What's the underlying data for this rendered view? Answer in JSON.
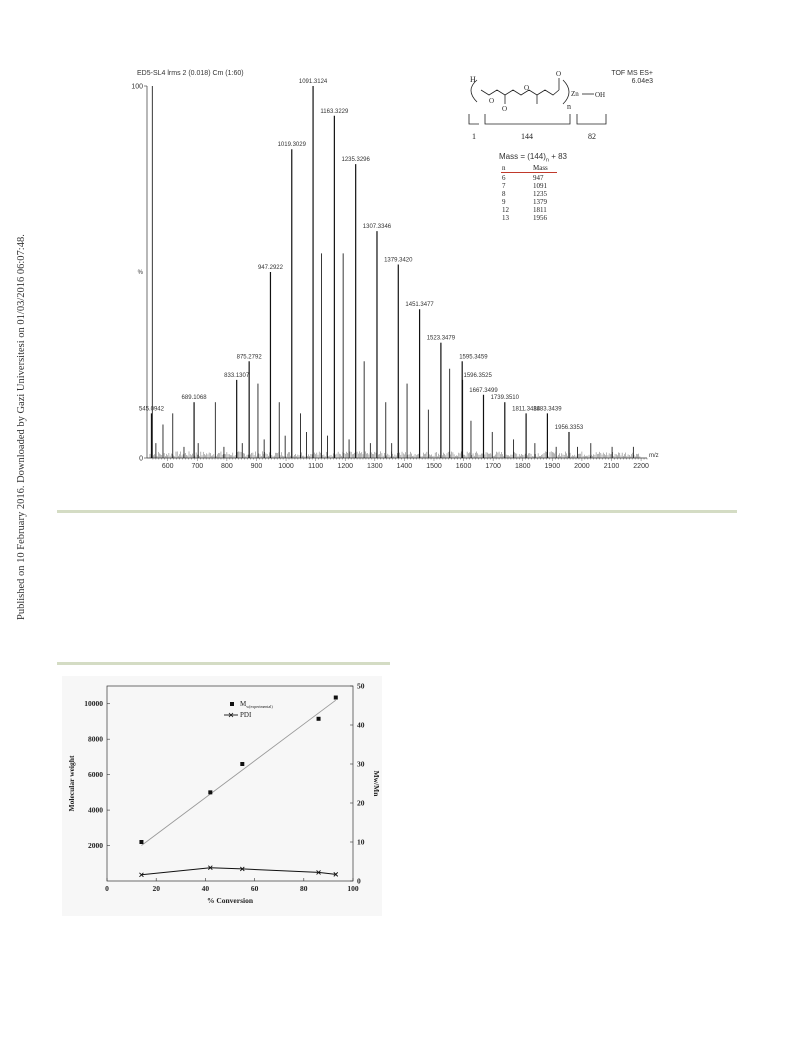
{
  "page": {
    "side_note": "Published on 10 February 2016. Downloaded by Gazi Universitesi on 01/03/2016 06:07:48."
  },
  "ms_figure": {
    "header_left": "ED5-SL4 lrms 2 (0.018) Cm (1:60)",
    "header_right_1": "TOF MS ES+",
    "header_right_2": "6.04e3",
    "structure": {
      "h_label": "H",
      "o_label_1": "O",
      "o_label_2": "O",
      "o_label_3": "O",
      "o_label_4": "O",
      "n_label": "n",
      "zn_label": "Zn",
      "oh_label": "OH",
      "bracket_1": "1",
      "bracket_2": "144",
      "bracket_3": "82",
      "mass_formula": "Mass = (144)",
      "mass_formula_sub": "n",
      "mass_formula_tail": " + 83"
    },
    "mass_table": {
      "headers": [
        "n",
        "Mass"
      ],
      "rows": [
        [
          "6",
          "947"
        ],
        [
          "7",
          "1091"
        ],
        [
          "8",
          "1235"
        ],
        [
          "9",
          "1379"
        ],
        [
          "12",
          "1811"
        ],
        [
          "13",
          "1956"
        ]
      ]
    }
  },
  "chart_data": [
    {
      "type": "bar",
      "title": "ED5-SL4 lrms 2 (0.018) Cm (1:60)",
      "xlabel": "m/z",
      "ylabel": "%",
      "xlim": [
        530,
        2220
      ],
      "ylim": [
        0,
        100
      ],
      "x_ticks": [
        600,
        700,
        800,
        900,
        1000,
        1100,
        1200,
        1300,
        1400,
        1500,
        1600,
        1700,
        1800,
        1900,
        2000,
        2100,
        2200
      ],
      "y_ticks": [
        0,
        100
      ],
      "y_tick_labels": [
        "0",
        "100"
      ],
      "y_mid_label": "%",
      "labeled_peaks": [
        {
          "x": 545.0942,
          "y": 12,
          "label": "545.0942"
        },
        {
          "x": 689.1068,
          "y": 15,
          "label": "689.1068"
        },
        {
          "x": 833.1307,
          "y": 21,
          "label": "833.1307"
        },
        {
          "x": 875.2792,
          "y": 26,
          "label": "875.2792"
        },
        {
          "x": 947.2922,
          "y": 50,
          "label": "947.2922"
        },
        {
          "x": 1019.3029,
          "y": 83,
          "label": "1019.3029"
        },
        {
          "x": 1091.3124,
          "y": 100,
          "label": "1091.3124"
        },
        {
          "x": 1163.3229,
          "y": 92,
          "label": "1163.3229"
        },
        {
          "x": 1235.3296,
          "y": 79,
          "label": "1235.3296"
        },
        {
          "x": 1307.3346,
          "y": 61,
          "label": "1307.3346"
        },
        {
          "x": 1379.342,
          "y": 52,
          "label": "1379.3420"
        },
        {
          "x": 1451.3477,
          "y": 40,
          "label": "1451.3477"
        },
        {
          "x": 1523.3479,
          "y": 31,
          "label": "1523.3479"
        },
        {
          "x": 1595.3459,
          "y": 26,
          "label": "1595.3459"
        },
        {
          "x": 1596.3525,
          "y": 21,
          "label": "1596.3525"
        },
        {
          "x": 1667.3499,
          "y": 17,
          "label": "1667.3499"
        },
        {
          "x": 1739.351,
          "y": 15,
          "label": "1739.3510"
        },
        {
          "x": 1811.3484,
          "y": 12,
          "label": "1811.3484"
        },
        {
          "x": 1883.3439,
          "y": 12,
          "label": "1883.3439"
        },
        {
          "x": 1956.3353,
          "y": 7,
          "label": "1956.3353"
        }
      ],
      "minor_peaks": [
        {
          "x": 548,
          "y": 100
        },
        {
          "x": 560,
          "y": 4
        },
        {
          "x": 584,
          "y": 9
        },
        {
          "x": 617,
          "y": 12
        },
        {
          "x": 655,
          "y": 3
        },
        {
          "x": 703,
          "y": 4
        },
        {
          "x": 761,
          "y": 15
        },
        {
          "x": 790,
          "y": 3
        },
        {
          "x": 852,
          "y": 4
        },
        {
          "x": 905,
          "y": 20
        },
        {
          "x": 926,
          "y": 5
        },
        {
          "x": 977,
          "y": 15
        },
        {
          "x": 997,
          "y": 6
        },
        {
          "x": 1049,
          "y": 12
        },
        {
          "x": 1069,
          "y": 7
        },
        {
          "x": 1120,
          "y": 55
        },
        {
          "x": 1140,
          "y": 6
        },
        {
          "x": 1193,
          "y": 55
        },
        {
          "x": 1213,
          "y": 5
        },
        {
          "x": 1264,
          "y": 26
        },
        {
          "x": 1285,
          "y": 4
        },
        {
          "x": 1337,
          "y": 15
        },
        {
          "x": 1357,
          "y": 4
        },
        {
          "x": 1409,
          "y": 20
        },
        {
          "x": 1481,
          "y": 13
        },
        {
          "x": 1553,
          "y": 24
        },
        {
          "x": 1625,
          "y": 10
        },
        {
          "x": 1697,
          "y": 7
        },
        {
          "x": 1769,
          "y": 5
        },
        {
          "x": 1841,
          "y": 4
        },
        {
          "x": 1913,
          "y": 3
        },
        {
          "x": 1985,
          "y": 3
        },
        {
          "x": 2030,
          "y": 4
        },
        {
          "x": 2102,
          "y": 3
        },
        {
          "x": 2174,
          "y": 3
        }
      ]
    },
    {
      "type": "scatter",
      "xlabel": "% Conversion",
      "ylabel": "Molecular weight",
      "y2label": "Mw/Mn",
      "xlim": [
        0,
        100
      ],
      "ylim": [
        0,
        11000
      ],
      "y2lim": [
        0,
        50
      ],
      "x_ticks": [
        0,
        20,
        40,
        60,
        80,
        100
      ],
      "y_ticks": [
        2000,
        4000,
        6000,
        8000,
        10000
      ],
      "y2_ticks": [
        0,
        10,
        20,
        30,
        40,
        50
      ],
      "grid": false,
      "legend": "top-center",
      "series": [
        {
          "name": "M",
          "name_sub": "w(experimental)",
          "marker": "square",
          "x": [
            14,
            42,
            55,
            86,
            93
          ],
          "y": [
            2200,
            5000,
            6600,
            9150,
            10350
          ]
        },
        {
          "name": "PDI",
          "marker": "x-line",
          "axis": "right",
          "x": [
            14,
            42,
            55,
            86,
            93
          ],
          "y": [
            1.6,
            3.4,
            3.1,
            2.2,
            1.7
          ]
        }
      ],
      "fit_line": {
        "x": [
          14,
          93
        ],
        "y": [
          2000,
          10200
        ]
      }
    }
  ]
}
